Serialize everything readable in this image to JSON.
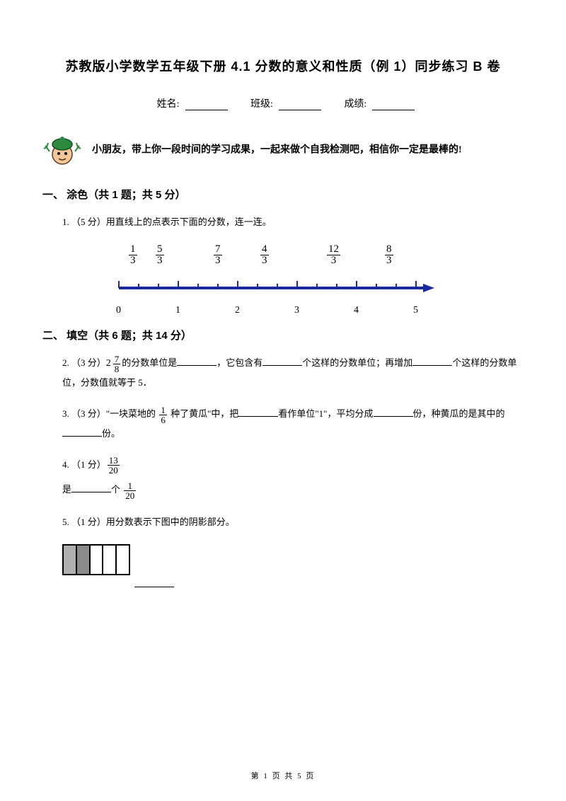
{
  "title": "苏教版小学数学五年级下册   4.1 分数的意义和性质（例 1）同步练习    B 卷",
  "info": {
    "name_label": "姓名:",
    "class_label": "班级:",
    "score_label": "成绩:"
  },
  "intro": "小朋友，带上你一段时间的学习成果，一起来做个自我检测吧，相信你一定是最棒的!",
  "section1": {
    "header": "一、 涂色（共 1 题；共 5 分）",
    "q1": {
      "label": "1.  （5 分）用直线上的点表示下面的分数，连一连。",
      "fracs": [
        {
          "n": "1",
          "d": "3"
        },
        {
          "n": "5",
          "d": "3"
        },
        {
          "n": "7",
          "d": "3"
        },
        {
          "n": "4",
          "d": "3"
        },
        {
          "n": "12",
          "d": "3"
        },
        {
          "n": "8",
          "d": "3"
        }
      ],
      "axis_labels": [
        "0",
        "1",
        "2",
        "3",
        "4",
        "5"
      ],
      "line_color": "#1a2a9e",
      "tick_color": "#1a2a9e"
    }
  },
  "section2": {
    "header": "二、 填空（共 6 题；共 14 分）",
    "q2": {
      "prefix": "2.   （3 分）",
      "mixed_whole": "2",
      "mixed_num": "7",
      "mixed_den": "8",
      "t1": "的分数单位是",
      "t2": "，它包含有",
      "t3": "个这样的分数单位；再增加",
      "t4": "个这样的分数单位，分数值就等于 5．"
    },
    "q3": {
      "prefix": "3.  （3 分）\"一块菜地的 ",
      "num": "1",
      "den": "6",
      "t1": " 种了黄瓜\"中，把",
      "t2": "看作单位\"1\"，平均分成",
      "t3": "份，种黄瓜的是其中的",
      "t4": "份。"
    },
    "q4": {
      "prefix": "4.  （1 分）",
      "num1": "13",
      "den1": "20",
      "mid": "是",
      "mid2": "个 ",
      "num2": "1",
      "den2": "20"
    },
    "q5": {
      "text": "5.  （1 分）用分数表示下图中的阴影部分。",
      "shaded_count": 2,
      "total_count": 5
    }
  },
  "footer": "第  1  页  共  5  页"
}
